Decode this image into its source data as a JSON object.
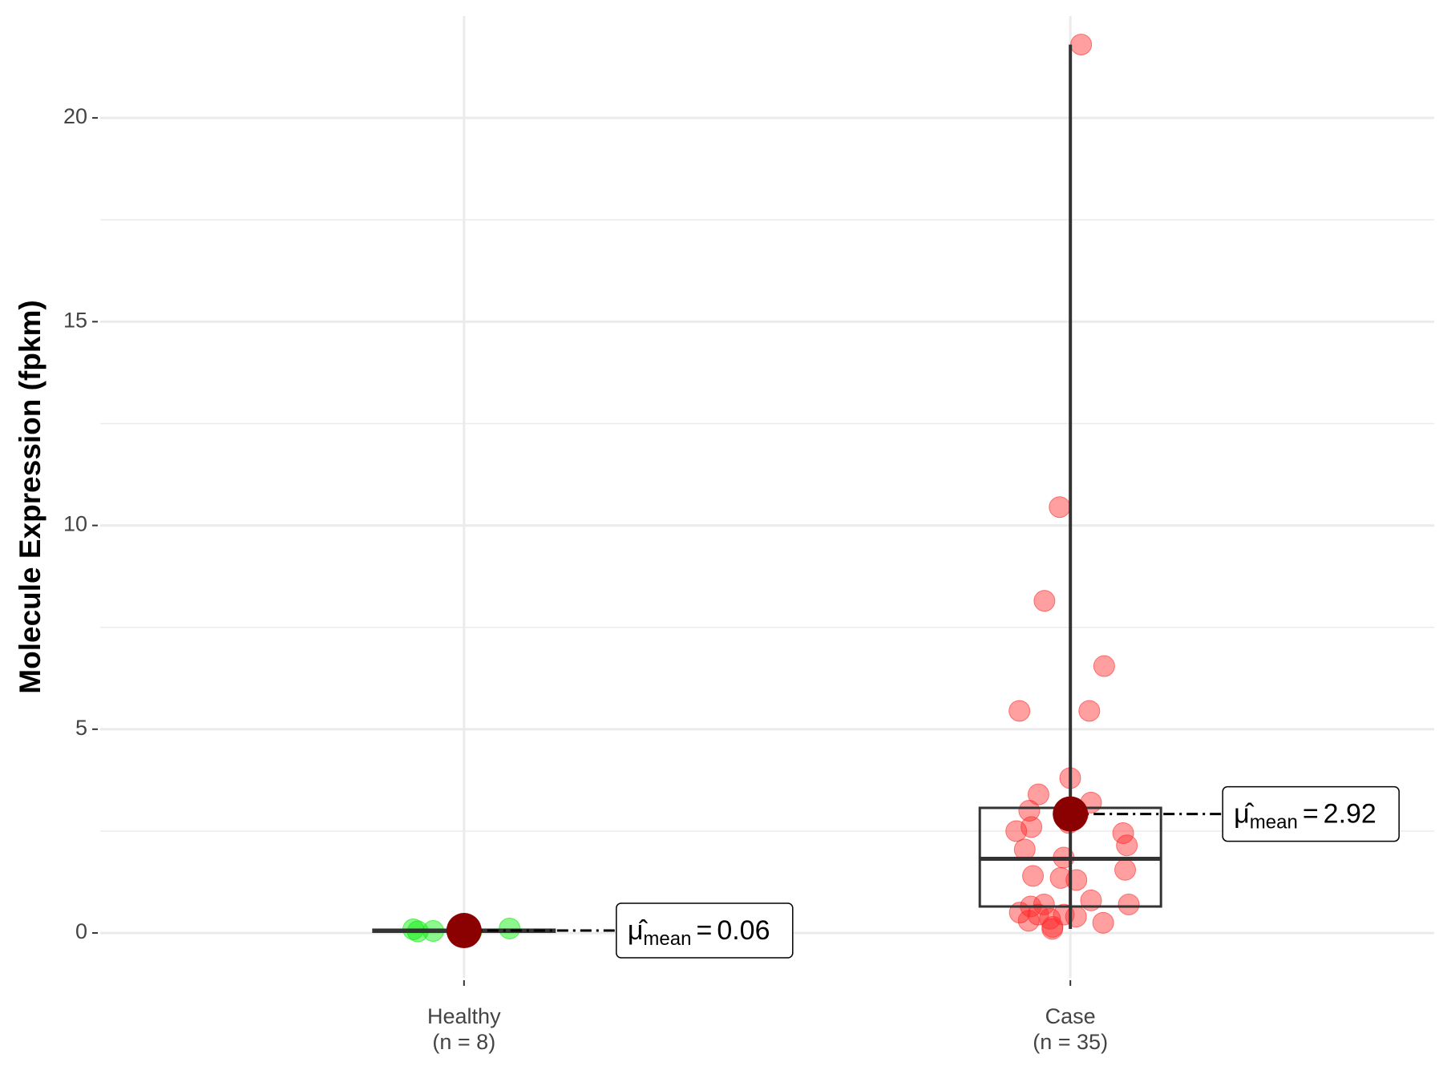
{
  "chart_data": {
    "type": "box",
    "y_label": "Molecule Expression (fpkm)",
    "categories": [
      "Healthy",
      "Case"
    ],
    "count_labels": [
      "(n = 8)",
      "(n = 35)"
    ],
    "ylim": [
      -1.1,
      22.5
    ],
    "yticks": [
      0,
      5,
      10,
      15,
      20
    ],
    "y_minor_ticks": [
      2.5,
      7.5,
      12.5,
      17.5
    ],
    "grid": true,
    "mean_label": {
      "symbol": "μ̂",
      "subscript": "mean",
      "equals": "="
    },
    "series": [
      {
        "name": "Healthy",
        "color": "#00ee00",
        "box": {
          "min": 0.01,
          "q1": 0.03,
          "median": 0.05,
          "q3": 0.08,
          "max": 0.12
        },
        "mean": 0.06,
        "points": [
          0.02,
          0.03,
          0.04,
          0.05,
          0.06,
          0.07,
          0.09,
          0.11
        ]
      },
      {
        "name": "Case",
        "color": "#ff2a2a",
        "box": {
          "min": 0.1,
          "q1": 0.65,
          "median": 1.82,
          "q3": 3.07,
          "max": 21.8
        },
        "mean": 2.92,
        "points": [
          21.8,
          10.45,
          8.15,
          6.55,
          5.45,
          5.45,
          3.8,
          3.4,
          3.2,
          3.0,
          2.9,
          2.7,
          2.6,
          2.5,
          2.45,
          2.15,
          2.05,
          1.85,
          1.55,
          1.4,
          1.35,
          1.3,
          0.8,
          0.7,
          0.65,
          0.7,
          0.45,
          0.45,
          0.4,
          0.35,
          0.3,
          0.25,
          0.15,
          0.1,
          0.5
        ]
      }
    ]
  }
}
